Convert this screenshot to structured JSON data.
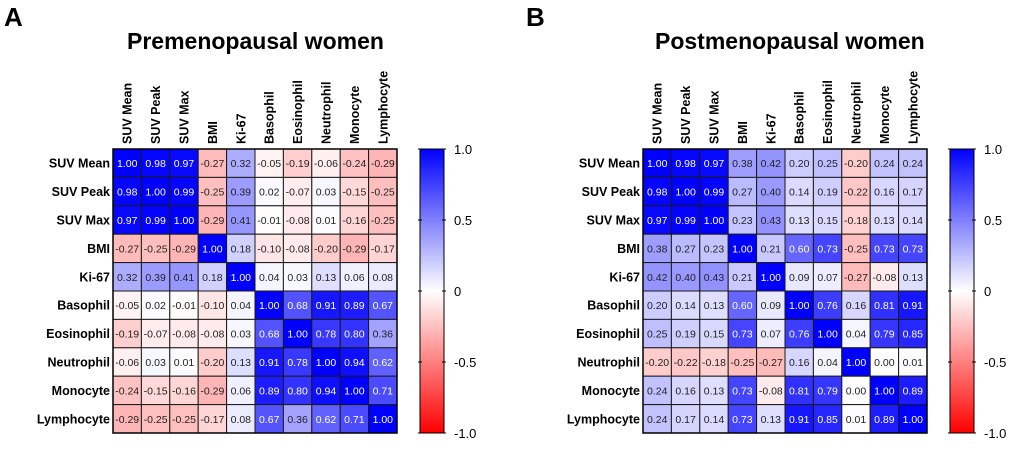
{
  "chart_data": [
    {
      "type": "heatmap",
      "panel_label": "A",
      "title": "Premenopausal women",
      "x_labels": [
        "SUV Mean",
        "SUV Peak",
        "SUV Max",
        "BMI",
        "Ki-67",
        "Basophil",
        "Eosinophil",
        "Neutrophil",
        "Monocyte",
        "Lymphocyte"
      ],
      "y_labels": [
        "SUV Mean",
        "SUV Peak",
        "SUV Max",
        "BMI",
        "Ki-67",
        "Basophil",
        "Eosinophil",
        "Neutrophil",
        "Monocyte",
        "Lymphocyte"
      ],
      "values": [
        [
          1.0,
          0.98,
          0.97,
          -0.27,
          0.32,
          -0.05,
          -0.19,
          -0.06,
          -0.24,
          -0.29
        ],
        [
          0.98,
          1.0,
          0.99,
          -0.25,
          0.39,
          0.02,
          -0.07,
          0.03,
          -0.15,
          -0.25
        ],
        [
          0.97,
          0.99,
          1.0,
          -0.29,
          0.41,
          -0.01,
          -0.08,
          0.01,
          -0.16,
          -0.25
        ],
        [
          -0.27,
          -0.25,
          -0.29,
          1.0,
          0.18,
          -0.1,
          -0.08,
          -0.2,
          -0.29,
          -0.17
        ],
        [
          0.32,
          0.39,
          0.41,
          0.18,
          1.0,
          0.04,
          0.03,
          0.13,
          0.06,
          0.08
        ],
        [
          -0.05,
          0.02,
          -0.01,
          -0.1,
          0.04,
          1.0,
          0.68,
          0.91,
          0.89,
          0.67
        ],
        [
          -0.19,
          -0.07,
          -0.08,
          -0.08,
          0.03,
          0.68,
          1.0,
          0.78,
          0.8,
          0.36
        ],
        [
          -0.06,
          0.03,
          0.01,
          -0.2,
          0.13,
          0.91,
          0.78,
          1.0,
          0.94,
          0.62
        ],
        [
          -0.24,
          -0.15,
          -0.16,
          -0.29,
          0.06,
          0.89,
          0.8,
          0.94,
          1.0,
          0.71
        ],
        [
          -0.29,
          -0.25,
          -0.25,
          -0.17,
          0.08,
          0.67,
          0.36,
          0.62,
          0.71,
          1.0
        ]
      ],
      "colorbar": {
        "range": [
          -1.0,
          1.0
        ],
        "ticks": [
          "1.0",
          "0.5",
          "0",
          "-0.5",
          "-1.0"
        ],
        "tick_values": [
          1.0,
          0.5,
          0,
          -0.5,
          -1.0
        ],
        "low_color": "#ff0000",
        "mid_color": "#ffffff",
        "high_color": "#0000ff"
      }
    },
    {
      "type": "heatmap",
      "panel_label": "B",
      "title": "Postmenopausal women",
      "x_labels": [
        "SUV Mean",
        "SUV Peak",
        "SUV Max",
        "BMI",
        "Ki-67",
        "Basophil",
        "Eosinophil",
        "Neutrophil",
        "Monocyte",
        "Lymphocyte"
      ],
      "y_labels": [
        "SUV Mean",
        "SUV Peak",
        "SUV Max",
        "BMI",
        "Ki-67",
        "Basophil",
        "Eosinophil",
        "Neutrophil",
        "Monocyte",
        "Lymphocyte"
      ],
      "values": [
        [
          1.0,
          0.98,
          0.97,
          0.38,
          0.42,
          0.2,
          0.25,
          -0.2,
          0.24,
          0.24
        ],
        [
          0.98,
          1.0,
          0.99,
          0.27,
          0.4,
          0.14,
          0.19,
          -0.22,
          0.16,
          0.17
        ],
        [
          0.97,
          0.99,
          1.0,
          0.23,
          0.43,
          0.13,
          0.15,
          -0.18,
          0.13,
          0.14
        ],
        [
          0.38,
          0.27,
          0.23,
          1.0,
          0.21,
          0.6,
          0.73,
          -0.25,
          0.73,
          0.73
        ],
        [
          0.42,
          0.4,
          0.43,
          0.21,
          1.0,
          0.09,
          0.07,
          -0.27,
          -0.08,
          0.13
        ],
        [
          0.2,
          0.14,
          0.13,
          0.6,
          0.09,
          1.0,
          0.76,
          0.16,
          0.81,
          0.91
        ],
        [
          0.25,
          0.19,
          0.15,
          0.73,
          0.07,
          0.76,
          1.0,
          0.04,
          0.79,
          0.85
        ],
        [
          -0.2,
          -0.22,
          -0.18,
          -0.25,
          -0.27,
          0.16,
          0.04,
          1.0,
          0.0,
          0.01
        ],
        [
          0.24,
          0.16,
          0.13,
          0.73,
          -0.08,
          0.81,
          0.79,
          0.0,
          1.0,
          0.89
        ],
        [
          0.24,
          0.17,
          0.14,
          0.73,
          0.13,
          0.91,
          0.85,
          0.01,
          0.89,
          1.0
        ]
      ],
      "colorbar": {
        "range": [
          -1.0,
          1.0
        ],
        "ticks": [
          "1.0",
          "0.5",
          "0",
          "-0.5",
          "-1.0"
        ],
        "tick_values": [
          1.0,
          0.5,
          0,
          -0.5,
          -1.0
        ],
        "low_color": "#ff0000",
        "mid_color": "#ffffff",
        "high_color": "#0000ff"
      }
    }
  ]
}
